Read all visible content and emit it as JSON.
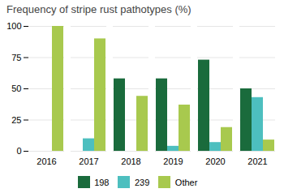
{
  "chart_data": {
    "type": "bar",
    "title": "Frequency of stripe rust pathotypes (%)",
    "categories": [
      "2016",
      "2017",
      "2018",
      "2019",
      "2020",
      "2021"
    ],
    "series": [
      {
        "name": "198",
        "color": "#1a6b3c",
        "values": [
          0,
          0,
          58,
          58,
          73,
          50
        ]
      },
      {
        "name": "239",
        "color": "#4dbfbf",
        "values": [
          0,
          10,
          0,
          4,
          7,
          43
        ]
      },
      {
        "name": "Other",
        "color": "#a8c94e",
        "values": [
          100,
          90,
          44,
          37,
          19,
          9
        ]
      }
    ],
    "ylim": [
      0,
      100
    ],
    "yticks": [
      0,
      25,
      50,
      75,
      100
    ],
    "grid": true,
    "legend": "bottom"
  }
}
